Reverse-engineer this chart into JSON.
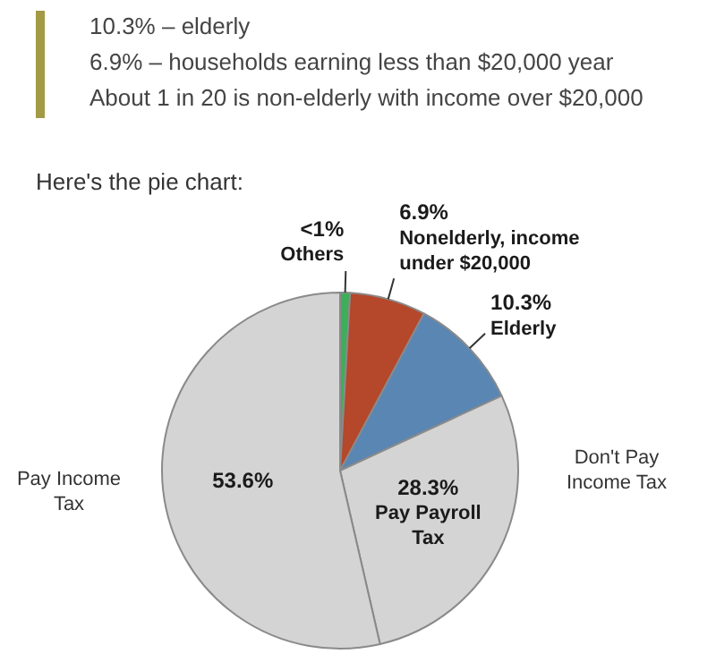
{
  "chart_data": {
    "type": "pie",
    "title": "Here's the pie chart:",
    "categories": [
      "Others",
      "Nonelderly, income under $20,000",
      "Elderly",
      "Pay Payroll Tax",
      null
    ],
    "values": [
      0.9,
      6.9,
      10.3,
      28.3,
      53.6
    ],
    "value_labels": [
      "<1%",
      "6.9%",
      "10.3%",
      "28.3%",
      "53.6%"
    ],
    "colors": [
      "#3fae5a",
      "#b5472a",
      "#5a86b3",
      "#d4d4d4",
      "#d4d4d4"
    ],
    "annotations": [
      "10.3% – elderly",
      "6.9% – households earning less than $20,000 year",
      "About 1 in 20 is non-elderly with income over $20,000",
      "Pay Income Tax",
      "Don't Pay Income Tax"
    ],
    "legend": false
  }
}
